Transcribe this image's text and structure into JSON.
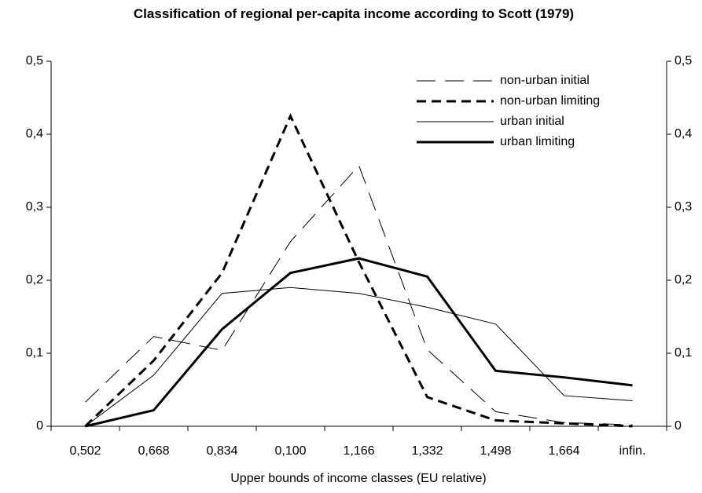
{
  "chart_data": {
    "type": "line",
    "title": "Classification of regional per-capita income according to Scott (1979)",
    "x_label": "Upper bounds of income classes (EU relative)",
    "categories": [
      "0,502",
      "0,668",
      "0,834",
      "0,100",
      "1,166",
      "1,332",
      "1,498",
      "1,664",
      "infin."
    ],
    "series": [
      {
        "name": "non-urban initial",
        "color": "#000000",
        "line_style": "dashed",
        "line_width": 1,
        "values": [
          0.033,
          0.123,
          0.104,
          0.253,
          0.357,
          0.105,
          0.02,
          0.005,
          0.002
        ]
      },
      {
        "name": "non-urban limiting",
        "color": "#000000",
        "line_style": "dashed",
        "line_width": 3,
        "values": [
          0,
          0.09,
          0.21,
          0.425,
          0.225,
          0.04,
          0.008,
          0.004,
          0
        ]
      },
      {
        "name": "urban initial",
        "color": "#000000",
        "line_style": "solid",
        "line_width": 1,
        "values": [
          0,
          0.07,
          0.182,
          0.19,
          0.182,
          0.163,
          0.14,
          0.042,
          0.035
        ]
      },
      {
        "name": "urban limiting",
        "color": "#000000",
        "line_style": "solid",
        "line_width": 3,
        "values": [
          0,
          0.022,
          0.133,
          0.21,
          0.23,
          0.205,
          0.076,
          0.067,
          0.056
        ]
      }
    ],
    "ylim": [
      0,
      0.5
    ],
    "yticks": [
      0,
      {
        "value": 0.1,
        "label": "0,1"
      },
      {
        "value": 0.2,
        "label": "0,2"
      },
      {
        "value": 0.3,
        "label": "0,3"
      },
      {
        "value": 0.4,
        "label": "0,4"
      },
      {
        "value": 0.5,
        "label": "0,5"
      }
    ],
    "y2lim": [
      0,
      0.5
    ],
    "y2ticks": [
      0,
      {
        "value": 0.1,
        "label": "0,1"
      },
      {
        "value": 0.2,
        "label": "0,2"
      },
      {
        "value": 0.3,
        "label": "0,3"
      },
      {
        "value": 0.4,
        "label": "0,4"
      },
      {
        "value": 0.5,
        "label": "0,5"
      }
    ],
    "grid": false,
    "legend": "top-right"
  }
}
